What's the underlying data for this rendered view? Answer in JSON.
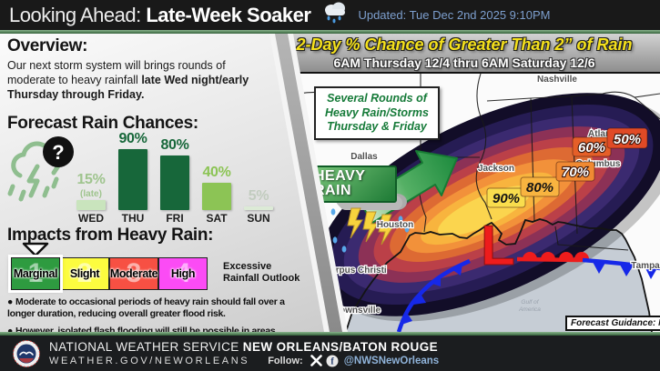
{
  "header": {
    "title_prefix": "Looking Ahead: ",
    "title_main": "Late-Week Soaker",
    "updated": "Updated: Tue Dec 2nd 2025 9:10PM"
  },
  "overview": {
    "heading": "Overview:",
    "body": "Our next storm system will brings rounds of moderate to heavy rainfall ",
    "body_bold": "late Wed night/early Thursday through Friday."
  },
  "chart": {
    "heading": "Forecast Rain Chances:",
    "icon_question_mark": "?",
    "days": [
      {
        "name": "WED",
        "label": "15%",
        "note": "(late)",
        "value": 15,
        "bar_color": "#c9e4bd",
        "label_color": "#9fc48e"
      },
      {
        "name": "THU",
        "label": "90%",
        "note": "",
        "value": 90,
        "bar_color": "#17673a",
        "label_color": "#17673a"
      },
      {
        "name": "FRI",
        "label": "80%",
        "note": "",
        "value": 80,
        "bar_color": "#17673a",
        "label_color": "#17673a"
      },
      {
        "name": "SAT",
        "label": "40%",
        "note": "",
        "value": 40,
        "bar_color": "#8cc455",
        "label_color": "#8cc455"
      },
      {
        "name": "SUN",
        "label": "5%",
        "note": "",
        "value": 5,
        "bar_color": "#dcead6",
        "label_color": "#c2ccbf"
      }
    ]
  },
  "chart_data": {
    "type": "bar",
    "title": "Forecast Rain Chances:",
    "categories": [
      "WED",
      "THU",
      "FRI",
      "SAT",
      "SUN"
    ],
    "values": [
      15,
      90,
      80,
      40,
      5
    ],
    "value_labels": [
      "15% (late)",
      "90%",
      "80%",
      "40%",
      "5%"
    ],
    "unit": "%",
    "ylim": [
      0,
      100
    ],
    "grid": false
  },
  "impacts": {
    "heading": "Impacts from Heavy Rain:",
    "outlook": "Excessive Rainfall Outlook",
    "categories": [
      {
        "label": "Marginal",
        "number": "1",
        "color": "#2e9b40"
      },
      {
        "label": "Slight",
        "number": "2",
        "color": "#fcfc3f"
      },
      {
        "label": "Moderate",
        "number": "3",
        "color": "#f75043"
      },
      {
        "label": "High",
        "number": "4",
        "color": "#fb4bf5"
      }
    ],
    "bullets": [
      {
        "text": "Moderate to occasional periods of heavy rain should fall over a longer duration, reducing overall greater flood risk.",
        "underline": ""
      },
      {
        "text": "However, ",
        "underline": "isolated flash flooding will still be possible in areas."
      }
    ]
  },
  "map": {
    "title": "2-Day % Chance of Greater Than 2” of Rain",
    "subtitle": "6AM Thursday 12/4 thru 6AM Saturday 12/6",
    "callout_lines": [
      "Several Rounds of",
      "Heavy Rain/Storms",
      "Thursday & Friday"
    ],
    "heavy_rain_line1": "HEAVY",
    "heavy_rain_line2": "RAIN",
    "low_symbol": "L",
    "low_color": "#ee1c1c",
    "guidance": "Forecast Guidance: NBM",
    "water_label_line1": "Gulf of",
    "water_label_line2": "America",
    "cities": [
      "Nashville",
      "Dallas",
      "Houston",
      "Jackson",
      "Columbus",
      "Atlanta",
      "Corpus Christi",
      "Brownsville",
      "Tampa"
    ],
    "percents": [
      {
        "text": "90%",
        "bg": "#f9dd4d",
        "fg": "#141414"
      },
      {
        "text": "80%",
        "bg": "#f8b440",
        "fg": "#141414"
      },
      {
        "text": "70%",
        "bg": "#f08a33",
        "fg": "#ffffff"
      },
      {
        "text": "60%",
        "bg": "#e55f28",
        "fg": "#ffffff"
      },
      {
        "text": "50%",
        "bg": "#e04a26",
        "fg": "#ffffff"
      }
    ],
    "band_colors": [
      "#120d28",
      "#261c54",
      "#3b2a70",
      "#8c3156",
      "#bb4048",
      "#dd6a33",
      "#f2913a",
      "#f8b43e",
      "#fbd54e"
    ]
  },
  "footer": {
    "org": "NATIONAL WEATHER SERVICE ",
    "office": "NEW ORLEANS/BATON ROUGE",
    "url": "WEATHER.GOV/NEWORLEANS",
    "follow": "Follow:",
    "handle": "@NWSNewOrleans"
  }
}
